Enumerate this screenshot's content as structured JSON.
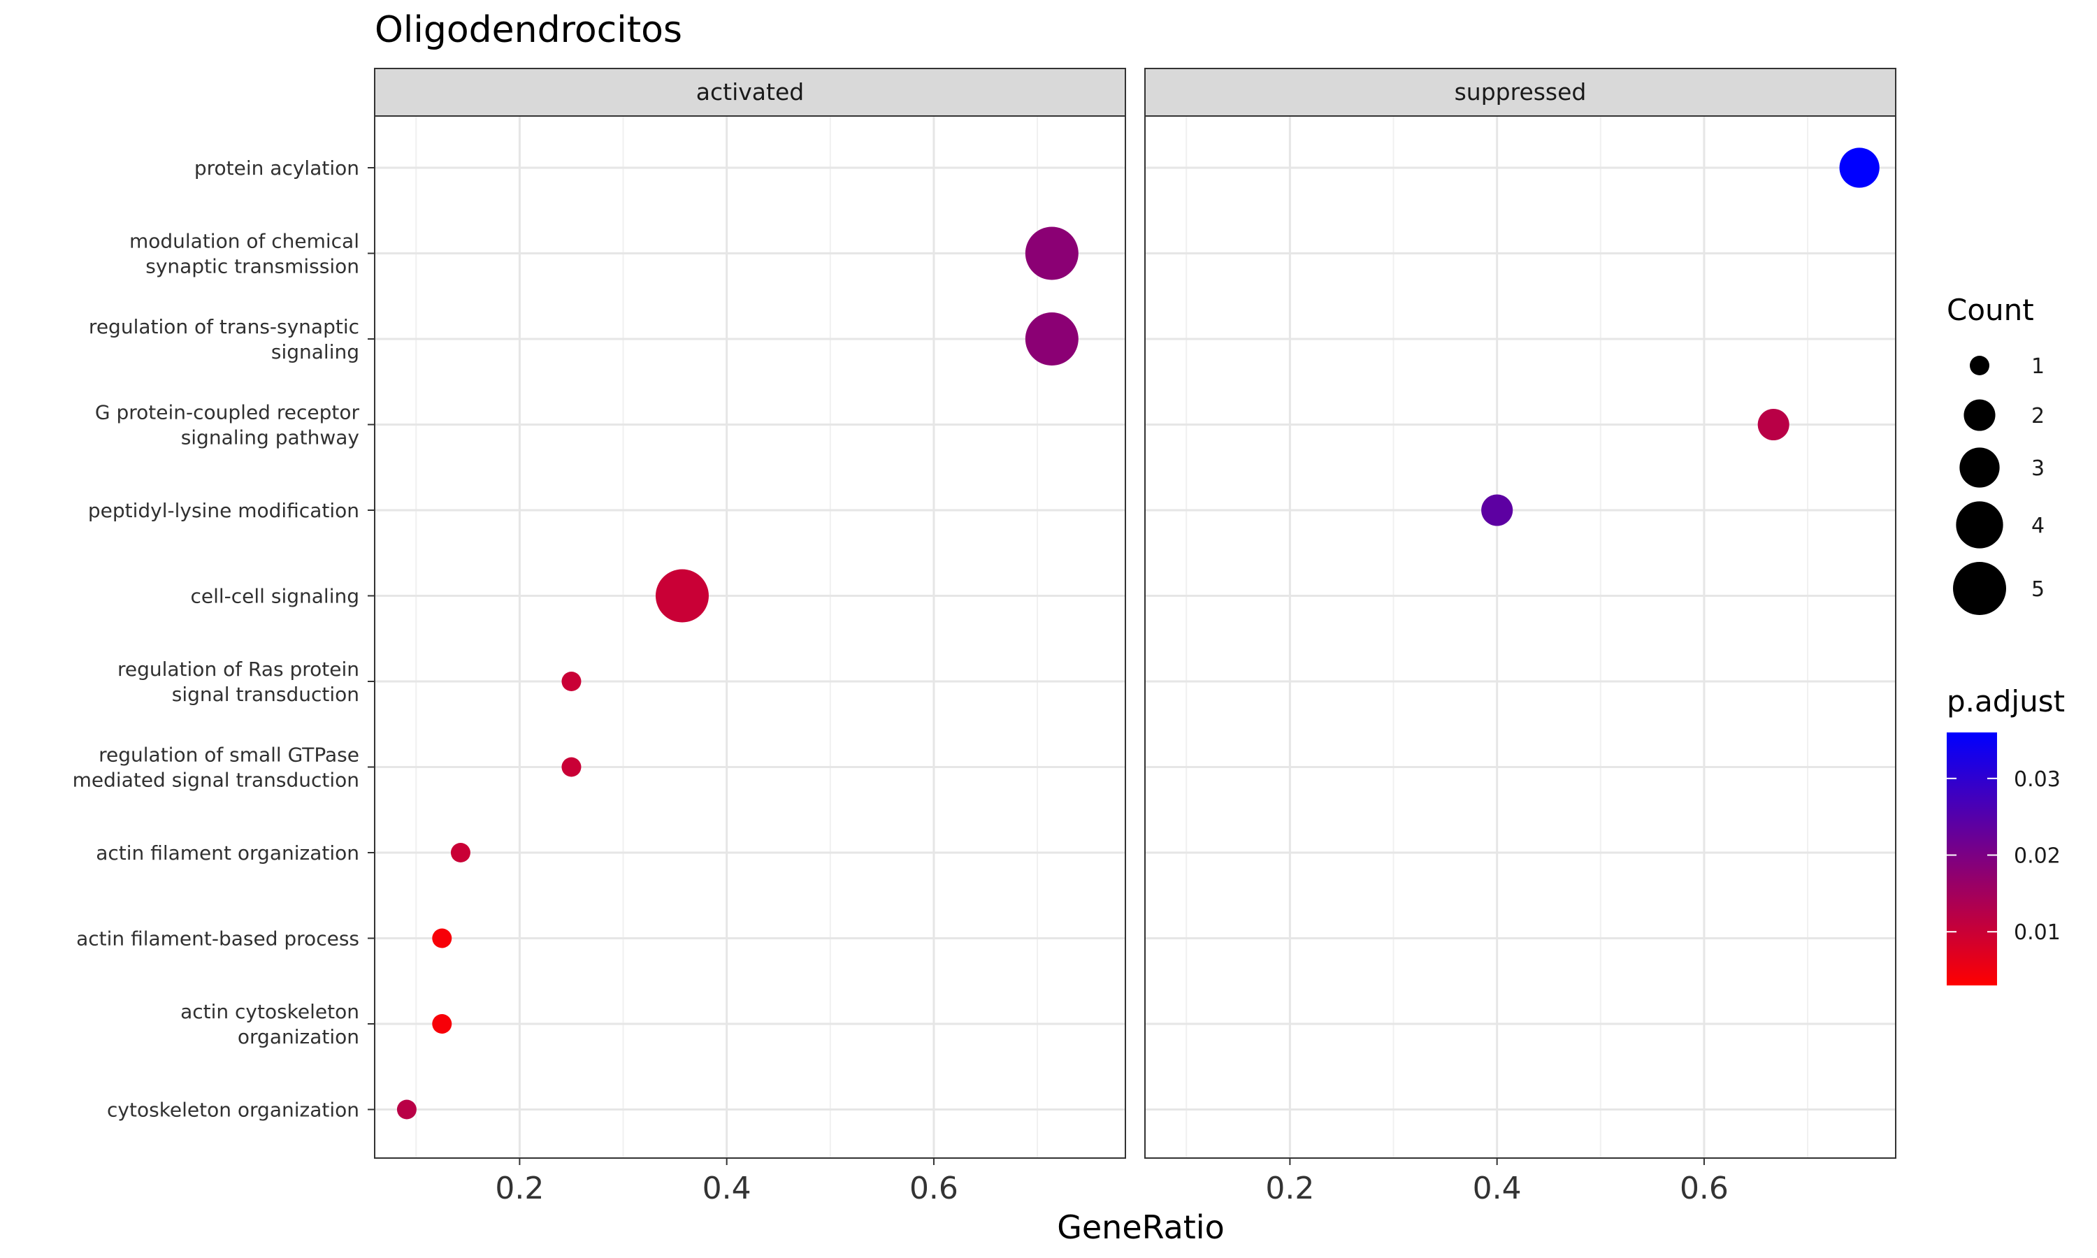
{
  "chart_data": {
    "type": "scatter",
    "title": "Oligodendrocitos",
    "xlabel": "GeneRatio",
    "ylabel": "",
    "xlim": [
      0.06,
      0.785
    ],
    "xticks": [
      0.2,
      0.4,
      0.6
    ],
    "xtick_labels": [
      "0.2",
      "0.4",
      "0.6"
    ],
    "grid": true,
    "facets": [
      "activated",
      "suppressed"
    ],
    "categories": [
      {
        "lines": [
          "protein acylation"
        ]
      },
      {
        "lines": [
          "modulation of chemical",
          "synaptic transmission"
        ]
      },
      {
        "lines": [
          "regulation of trans-synaptic",
          "signaling"
        ]
      },
      {
        "lines": [
          "G protein-coupled receptor",
          "signaling pathway"
        ]
      },
      {
        "lines": [
          "peptidyl-lysine modification"
        ]
      },
      {
        "lines": [
          "cell-cell signaling"
        ]
      },
      {
        "lines": [
          "regulation of Ras protein",
          "signal transduction"
        ]
      },
      {
        "lines": [
          "regulation of small GTPase",
          "mediated signal transduction"
        ]
      },
      {
        "lines": [
          "actin filament organization"
        ]
      },
      {
        "lines": [
          "actin filament-based process"
        ]
      },
      {
        "lines": [
          "actin cytoskeleton",
          "organization"
        ]
      },
      {
        "lines": [
          "cytoskeleton organization"
        ]
      }
    ],
    "points": [
      {
        "facet": 0,
        "category": 1,
        "x": 0.714,
        "count": 5,
        "p_adjust": 0.018
      },
      {
        "facet": 0,
        "category": 2,
        "x": 0.714,
        "count": 5,
        "p_adjust": 0.018
      },
      {
        "facet": 0,
        "category": 5,
        "x": 0.357,
        "count": 5,
        "p_adjust": 0.01
      },
      {
        "facet": 0,
        "category": 6,
        "x": 0.25,
        "count": 1,
        "p_adjust": 0.01
      },
      {
        "facet": 0,
        "category": 7,
        "x": 0.25,
        "count": 1,
        "p_adjust": 0.01
      },
      {
        "facet": 0,
        "category": 8,
        "x": 0.143,
        "count": 1,
        "p_adjust": 0.01
      },
      {
        "facet": 0,
        "category": 9,
        "x": 0.125,
        "count": 1,
        "p_adjust": 0.004
      },
      {
        "facet": 0,
        "category": 10,
        "x": 0.125,
        "count": 1,
        "p_adjust": 0.004
      },
      {
        "facet": 0,
        "category": 11,
        "x": 0.091,
        "count": 1,
        "p_adjust": 0.012
      },
      {
        "facet": 1,
        "category": 0,
        "x": 0.75,
        "count": 3,
        "p_adjust": 0.036
      },
      {
        "facet": 1,
        "category": 3,
        "x": 0.667,
        "count": 2,
        "p_adjust": 0.012
      },
      {
        "facet": 1,
        "category": 4,
        "x": 0.4,
        "count": 2,
        "p_adjust": 0.024
      }
    ],
    "legend_size": {
      "title": "Count",
      "breaks": [
        1,
        2,
        3,
        4,
        5
      ],
      "labels": [
        "1",
        "2",
        "3",
        "4",
        "5"
      ]
    },
    "legend_color": {
      "title": "p.adjust",
      "range": [
        0.003,
        0.036
      ],
      "breaks": [
        0.01,
        0.02,
        0.03
      ],
      "labels": [
        "0.01",
        "0.02",
        "0.03"
      ],
      "low_color": "#FF0000",
      "high_color": "#0000FF"
    },
    "legend_placement": "right"
  }
}
